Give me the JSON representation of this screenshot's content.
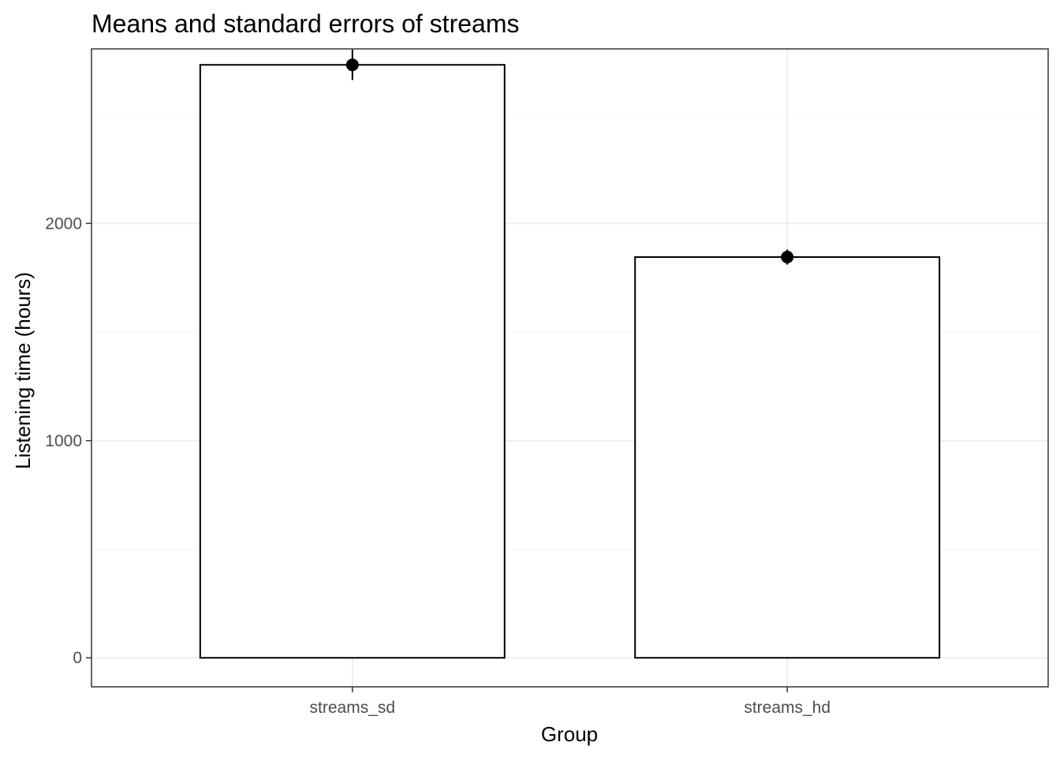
{
  "chart_data": {
    "type": "bar",
    "title": "Means and standard errors of streams",
    "xlabel": "Group",
    "ylabel": "Listening time (hours)",
    "categories": [
      "streams_sd",
      "streams_hd"
    ],
    "values": [
      2730,
      1845
    ],
    "standard_errors": [
      70,
      35
    ],
    "y_ticks": [
      0,
      1000,
      2000
    ],
    "y_tick_labels": [
      "0",
      "1000",
      "2000"
    ],
    "ylim": [
      -133.5,
      2803.5
    ],
    "grid": true,
    "legend": "none",
    "colors": {
      "bar_fill": "#ffffff",
      "bar_outline": "#000000",
      "point": "#000000",
      "error_bar": "#000000",
      "grid_major": "#ebebeb",
      "grid_minor": "#f5f5f5",
      "panel_border": "#333333",
      "tick_label": "#4d4d4d"
    }
  }
}
